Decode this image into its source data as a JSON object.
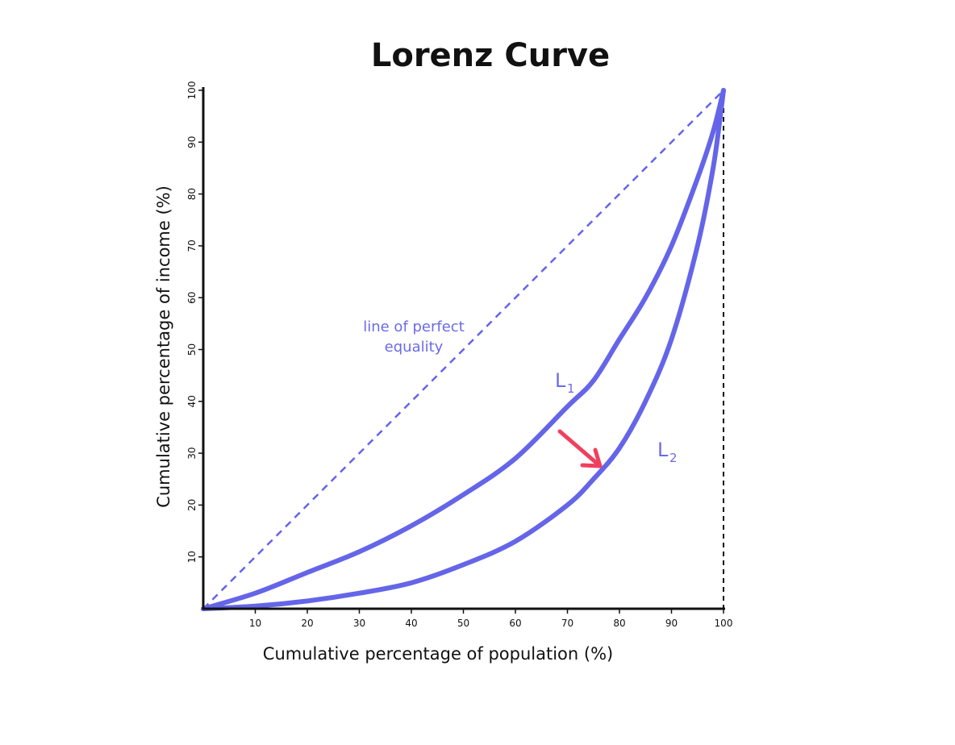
{
  "chart_data": {
    "type": "line",
    "title": "Lorenz Curve",
    "xlabel": "Cumulative percentage of population (%)",
    "ylabel": "Cumulative percentage of income (%)",
    "xlim": [
      0,
      100
    ],
    "ylim": [
      0,
      100
    ],
    "x_ticks": [
      10,
      20,
      30,
      40,
      50,
      60,
      70,
      80,
      90,
      100
    ],
    "y_ticks": [
      10,
      20,
      30,
      40,
      50,
      60,
      70,
      80,
      90,
      100
    ],
    "equality_label_lines": [
      "line of perfect",
      "equality"
    ],
    "series": [
      {
        "label_main": "L",
        "label_sub": "1",
        "color": "#6565e9",
        "x": [
          0,
          10,
          20,
          30,
          40,
          50,
          60,
          70,
          75,
          80,
          85,
          90,
          95,
          98,
          100
        ],
        "y": [
          0,
          3,
          7,
          11,
          16,
          22,
          29,
          39,
          44,
          52,
          60,
          70,
          83,
          92,
          100
        ]
      },
      {
        "label_main": "L",
        "label_sub": "2",
        "color": "#6565e9",
        "x": [
          0,
          10,
          20,
          30,
          40,
          50,
          60,
          70,
          75,
          80,
          85,
          90,
          95,
          98,
          99.5,
          100
        ],
        "y": [
          0,
          0.5,
          1.5,
          3,
          5,
          8.5,
          13,
          20,
          25,
          31,
          40,
          52,
          70,
          85,
          96,
          100
        ]
      }
    ],
    "equality_line": {
      "x": [
        0,
        100
      ],
      "y": [
        0,
        100
      ],
      "color": "#6565e9",
      "style": "dashed"
    },
    "arrow_color": "#f0405f",
    "axis_color": "#111111"
  }
}
